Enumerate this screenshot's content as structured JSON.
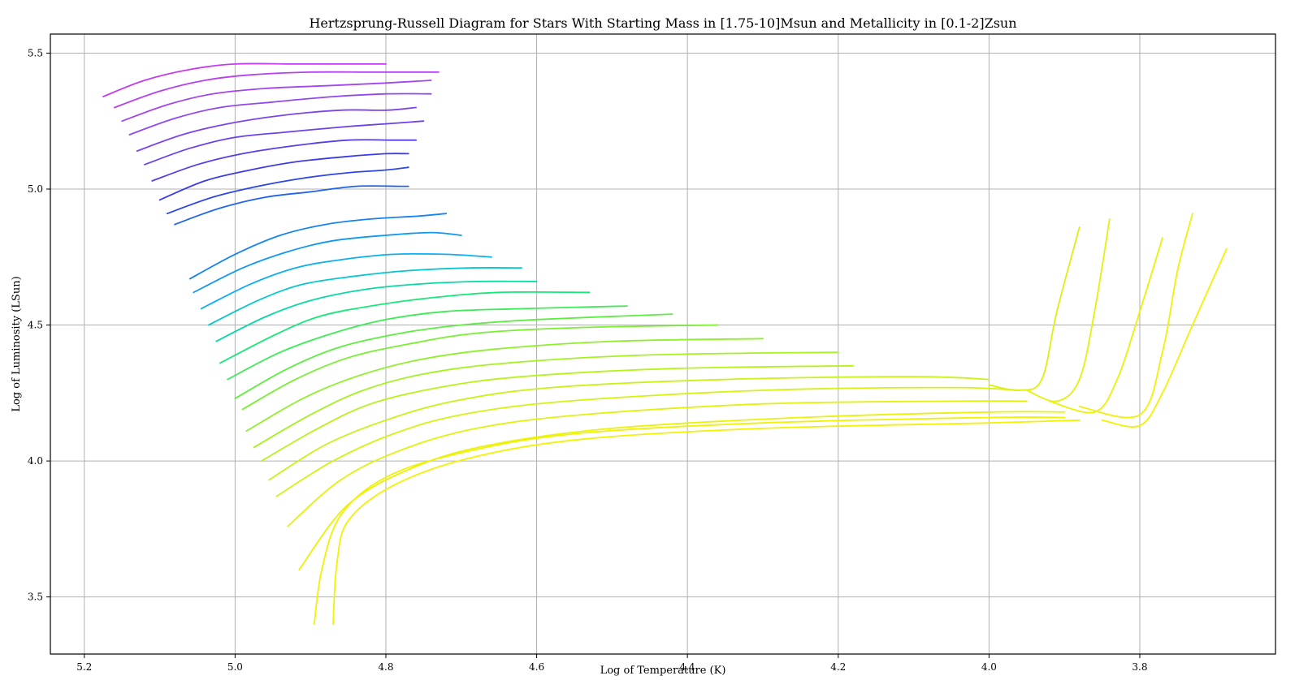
{
  "chart_data": {
    "type": "line",
    "title": "Hertzsprung-Russell Diagram for Stars With Starting Mass in [1.75-10]Msun and Metallicity in [0.1-2]Zsun",
    "xlabel": "Log of Temperature (K)",
    "ylabel": "Log of Luminosity (LSun)",
    "xlim": [
      5.245,
      3.62
    ],
    "ylim": [
      3.29,
      5.57
    ],
    "x_inverted": true,
    "grid": true,
    "x_ticks": [
      5.2,
      5.0,
      4.8,
      4.6,
      4.4,
      4.2,
      4.0,
      3.8
    ],
    "x_tick_labels": [
      "5.2",
      "5.0",
      "4.8",
      "4.6",
      "4.4",
      "4.2",
      "4.0",
      "3.8"
    ],
    "y_ticks": [
      3.5,
      4.0,
      4.5,
      5.0,
      5.5
    ],
    "y_tick_labels": [
      "3.5",
      "4.0",
      "4.5",
      "5.0",
      "5.5"
    ],
    "colormap": [
      "#ff00ff",
      "#2b35ff",
      "#00a6ff",
      "#0fe87f",
      "#9ef21a",
      "#f2f200"
    ],
    "series": [
      {
        "color": "#c43cf0",
        "x": [
          5.175,
          5.12,
          5.06,
          5.0,
          4.92,
          4.84,
          4.8
        ],
        "y": [
          5.34,
          5.4,
          5.44,
          5.46,
          5.46,
          5.46,
          5.46
        ]
      },
      {
        "color": "#b640ef",
        "x": [
          5.16,
          5.1,
          5.04,
          4.98,
          4.9,
          4.82,
          4.73
        ],
        "y": [
          5.3,
          5.36,
          5.4,
          5.42,
          5.43,
          5.43,
          5.43
        ]
      },
      {
        "color": "#a345ee",
        "x": [
          5.15,
          5.09,
          5.03,
          4.96,
          4.88,
          4.8,
          4.74
        ],
        "y": [
          5.25,
          5.31,
          5.35,
          5.37,
          5.38,
          5.39,
          5.4
        ]
      },
      {
        "color": "#9048ed",
        "x": [
          5.14,
          5.08,
          5.02,
          4.95,
          4.87,
          4.8,
          4.74
        ],
        "y": [
          5.2,
          5.26,
          5.3,
          5.32,
          5.34,
          5.35,
          5.35
        ]
      },
      {
        "color": "#7c45ec",
        "x": [
          5.13,
          5.07,
          5.01,
          4.94,
          4.86,
          4.8,
          4.76
        ],
        "y": [
          5.14,
          5.2,
          5.24,
          5.27,
          5.29,
          5.29,
          5.3
        ]
      },
      {
        "color": "#6a42eb",
        "x": [
          5.12,
          5.06,
          5.0,
          4.93,
          4.85,
          4.8,
          4.75
        ],
        "y": [
          5.09,
          5.15,
          5.19,
          5.21,
          5.23,
          5.24,
          5.25
        ]
      },
      {
        "color": "#583ee9",
        "x": [
          5.11,
          5.05,
          4.99,
          4.92,
          4.85,
          4.79,
          4.76
        ],
        "y": [
          5.03,
          5.09,
          5.13,
          5.16,
          5.18,
          5.18,
          5.18
        ]
      },
      {
        "color": "#3e3ae8",
        "x": [
          5.1,
          5.04,
          4.98,
          4.92,
          4.85,
          4.8,
          4.77
        ],
        "y": [
          4.96,
          5.03,
          5.07,
          5.1,
          5.12,
          5.13,
          5.13
        ]
      },
      {
        "color": "#2c46ea",
        "x": [
          5.09,
          5.03,
          4.97,
          4.91,
          4.85,
          4.8,
          4.77
        ],
        "y": [
          4.91,
          4.97,
          5.01,
          5.04,
          5.06,
          5.07,
          5.08
        ]
      },
      {
        "color": "#1f63ee",
        "x": [
          5.08,
          5.02,
          4.96,
          4.9,
          4.84,
          4.78,
          4.77
        ],
        "y": [
          4.87,
          4.93,
          4.97,
          4.99,
          5.01,
          5.01,
          5.01
        ]
      },
      {
        "color": "#1583f1",
        "x": [
          5.06,
          5.0,
          4.94,
          4.88,
          4.82,
          4.76,
          4.72
        ],
        "y": [
          4.67,
          4.76,
          4.83,
          4.87,
          4.89,
          4.9,
          4.91
        ]
      },
      {
        "color": "#0e98f2",
        "x": [
          5.055,
          4.99,
          4.93,
          4.87,
          4.8,
          4.74,
          4.7
        ],
        "y": [
          4.62,
          4.71,
          4.77,
          4.81,
          4.83,
          4.84,
          4.83
        ]
      },
      {
        "color": "#0aaff0",
        "x": [
          5.045,
          4.98,
          4.92,
          4.86,
          4.79,
          4.72,
          4.66
        ],
        "y": [
          4.56,
          4.65,
          4.71,
          4.74,
          4.76,
          4.76,
          4.75
        ]
      },
      {
        "color": "#08c6d0",
        "x": [
          5.035,
          4.97,
          4.91,
          4.84,
          4.77,
          4.69,
          4.62
        ],
        "y": [
          4.5,
          4.59,
          4.65,
          4.68,
          4.7,
          4.71,
          4.71
        ]
      },
      {
        "color": "#0bd9a4",
        "x": [
          5.025,
          4.96,
          4.9,
          4.83,
          4.76,
          4.68,
          4.6
        ],
        "y": [
          4.44,
          4.53,
          4.59,
          4.63,
          4.65,
          4.66,
          4.66
        ]
      },
      {
        "color": "#14e878",
        "x": [
          5.02,
          4.95,
          4.89,
          4.82,
          4.74,
          4.65,
          4.53
        ],
        "y": [
          4.36,
          4.46,
          4.53,
          4.57,
          4.6,
          4.62,
          4.62
        ]
      },
      {
        "color": "#3cec55",
        "x": [
          5.01,
          4.94,
          4.87,
          4.8,
          4.72,
          4.62,
          4.48
        ],
        "y": [
          4.3,
          4.4,
          4.47,
          4.52,
          4.55,
          4.56,
          4.57
        ]
      },
      {
        "color": "#5cee40",
        "x": [
          5.0,
          4.93,
          4.86,
          4.78,
          4.7,
          4.6,
          4.42
        ],
        "y": [
          4.23,
          4.34,
          4.42,
          4.47,
          4.5,
          4.52,
          4.54
        ]
      },
      {
        "color": "#79ef32",
        "x": [
          4.99,
          4.92,
          4.85,
          4.77,
          4.68,
          4.55,
          4.36
        ],
        "y": [
          4.19,
          4.3,
          4.38,
          4.43,
          4.47,
          4.49,
          4.5
        ]
      },
      {
        "color": "#8ef02a",
        "x": [
          4.985,
          4.91,
          4.84,
          4.76,
          4.66,
          4.5,
          4.3
        ],
        "y": [
          4.11,
          4.23,
          4.31,
          4.37,
          4.41,
          4.44,
          4.45
        ]
      },
      {
        "color": "#a5f122",
        "x": [
          4.975,
          4.9,
          4.83,
          4.75,
          4.64,
          4.45,
          4.2
        ],
        "y": [
          4.05,
          4.17,
          4.26,
          4.32,
          4.36,
          4.39,
          4.4
        ]
      },
      {
        "color": "#b8f21b",
        "x": [
          4.965,
          4.89,
          4.82,
          4.73,
          4.62,
          4.42,
          4.18
        ],
        "y": [
          4.0,
          4.12,
          4.21,
          4.27,
          4.31,
          4.34,
          4.35
        ]
      },
      {
        "color": "#c9f216",
        "x": [
          4.955,
          4.88,
          4.8,
          4.71,
          4.58,
          4.35,
          4.1,
          4.0
        ],
        "y": [
          3.93,
          4.06,
          4.15,
          4.22,
          4.27,
          4.3,
          4.31,
          4.3
        ]
      },
      {
        "color": "#d6f212",
        "x": [
          4.945,
          4.87,
          4.79,
          4.7,
          4.56,
          4.3,
          4.05,
          3.96
        ],
        "y": [
          3.87,
          4.0,
          4.1,
          4.17,
          4.22,
          4.26,
          4.27,
          4.26
        ]
      },
      {
        "color": "#e0f20e",
        "x": [
          4.93,
          4.86,
          4.78,
          4.68,
          4.54,
          4.3,
          4.05,
          3.95
        ],
        "y": [
          3.76,
          3.93,
          4.04,
          4.12,
          4.17,
          4.21,
          4.22,
          4.22
        ]
      },
      {
        "color": "#e8f20a",
        "x": [
          4.915,
          4.85,
          4.76,
          4.66,
          4.5,
          4.25,
          4.0,
          3.9
        ],
        "y": [
          3.6,
          3.84,
          3.98,
          4.06,
          4.12,
          4.16,
          4.18,
          4.18
        ]
      },
      {
        "color": "#f0f206",
        "x": [
          4.895,
          4.885,
          4.86,
          4.8,
          4.7,
          4.55,
          4.3,
          4.0,
          3.9
        ],
        "y": [
          3.4,
          3.6,
          3.8,
          3.94,
          4.03,
          4.1,
          4.14,
          4.16,
          4.16
        ]
      },
      {
        "color": "#f2f204",
        "x": [
          4.87,
          4.865,
          4.85,
          4.79,
          4.69,
          4.54,
          4.3,
          4.0,
          3.88
        ],
        "y": [
          3.4,
          3.62,
          3.78,
          3.91,
          4.01,
          4.08,
          4.12,
          4.14,
          4.15
        ]
      },
      {
        "color": "#ddf00c",
        "x": [
          4.0,
          3.96,
          3.93,
          3.91,
          3.88
        ],
        "y": [
          4.28,
          4.26,
          4.3,
          4.55,
          4.86
        ]
      },
      {
        "color": "#e4f10a",
        "x": [
          3.95,
          3.91,
          3.88,
          3.86,
          3.84
        ],
        "y": [
          4.26,
          4.22,
          4.3,
          4.55,
          4.89
        ]
      },
      {
        "color": "#eaf208",
        "x": [
          3.92,
          3.86,
          3.83,
          3.8,
          3.77
        ],
        "y": [
          4.22,
          4.18,
          4.3,
          4.55,
          4.82
        ]
      },
      {
        "color": "#eef206",
        "x": [
          3.88,
          3.8,
          3.77,
          3.75,
          3.73
        ],
        "y": [
          4.2,
          4.17,
          4.4,
          4.7,
          4.91
        ]
      },
      {
        "color": "#f2f204",
        "x": [
          3.85,
          3.8,
          3.77,
          3.73,
          3.685
        ],
        "y": [
          4.15,
          4.13,
          4.25,
          4.5,
          4.78
        ]
      }
    ]
  }
}
